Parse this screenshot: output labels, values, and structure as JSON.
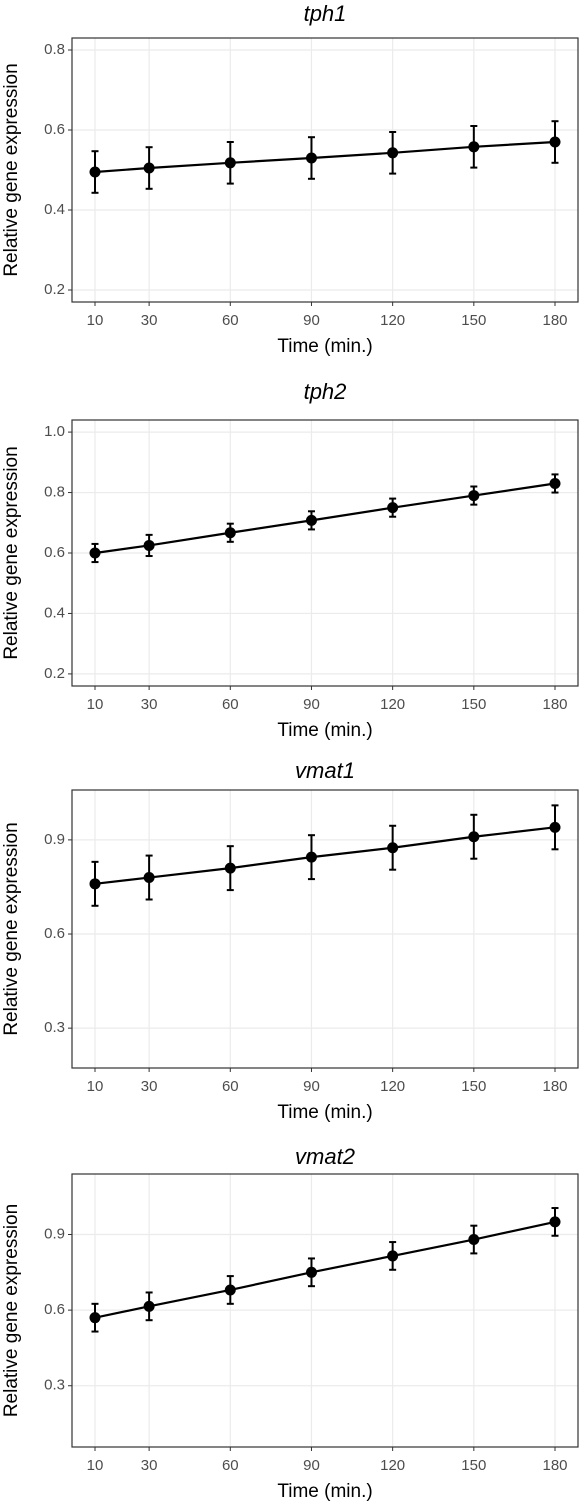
{
  "chart_data": [
    {
      "type": "line",
      "title": "tph1",
      "xlabel": "Time (min.)",
      "ylabel": "Relative gene expression",
      "x": [
        10,
        30,
        60,
        90,
        120,
        150,
        180
      ],
      "values": [
        0.495,
        0.505,
        0.518,
        0.53,
        0.543,
        0.558,
        0.57
      ],
      "errors": [
        0.052,
        0.052,
        0.052,
        0.052,
        0.052,
        0.052,
        0.052
      ],
      "color": "#000000",
      "xlim": [
        1.5,
        188.5
      ],
      "ylim": [
        0.17,
        0.83
      ],
      "xticks": [
        10,
        30,
        60,
        90,
        120,
        150,
        180
      ],
      "yticks": [
        0.2,
        0.4,
        0.6,
        0.8
      ],
      "grid": true
    },
    {
      "type": "line",
      "title": "tph2",
      "xlabel": "Time (min.)",
      "ylabel": "Relative gene expression",
      "x": [
        10,
        30,
        60,
        90,
        120,
        150,
        180
      ],
      "values": [
        0.6,
        0.625,
        0.667,
        0.708,
        0.75,
        0.79,
        0.83
      ],
      "errors": [
        0.03,
        0.035,
        0.03,
        0.03,
        0.03,
        0.03,
        0.03
      ],
      "color": "#000000",
      "xlim": [
        1.5,
        188.5
      ],
      "ylim": [
        0.16,
        1.04
      ],
      "xticks": [
        10,
        30,
        60,
        90,
        120,
        150,
        180
      ],
      "yticks": [
        0.2,
        0.4,
        0.6,
        0.8,
        {
          "value": 1.0,
          "label": "1.0"
        }
      ],
      "grid": true
    },
    {
      "type": "line",
      "title": "vmat1",
      "xlabel": "Time (min.)",
      "ylabel": "Relative gene expression",
      "x": [
        10,
        30,
        60,
        90,
        120,
        150,
        180
      ],
      "values": [
        0.76,
        0.78,
        0.81,
        0.845,
        0.875,
        0.91,
        0.94
      ],
      "errors": [
        0.07,
        0.07,
        0.07,
        0.07,
        0.07,
        0.07,
        0.07
      ],
      "color": "#000000",
      "xlim": [
        1.5,
        188.5
      ],
      "ylim": [
        0.173,
        1.059
      ],
      "xticks": [
        10,
        30,
        60,
        90,
        120,
        150,
        180
      ],
      "yticks": [
        0.3,
        0.6,
        0.9
      ],
      "grid": true
    },
    {
      "type": "line",
      "title": "vmat2",
      "xlabel": "Time (min.)",
      "ylabel": "Relative gene expression",
      "x": [
        10,
        30,
        60,
        90,
        120,
        150,
        180
      ],
      "values": [
        0.57,
        0.615,
        0.68,
        0.75,
        0.815,
        0.88,
        0.95
      ],
      "errors": [
        0.055,
        0.055,
        0.055,
        0.055,
        0.055,
        0.055,
        0.055
      ],
      "color": "#000000",
      "xlim": [
        1.5,
        188.5
      ],
      "ylim": [
        0.057,
        1.14
      ],
      "xticks": [
        10,
        30,
        60,
        90,
        120,
        150,
        180
      ],
      "yticks": [
        0.3,
        0.6,
        0.9
      ],
      "grid": true
    }
  ]
}
